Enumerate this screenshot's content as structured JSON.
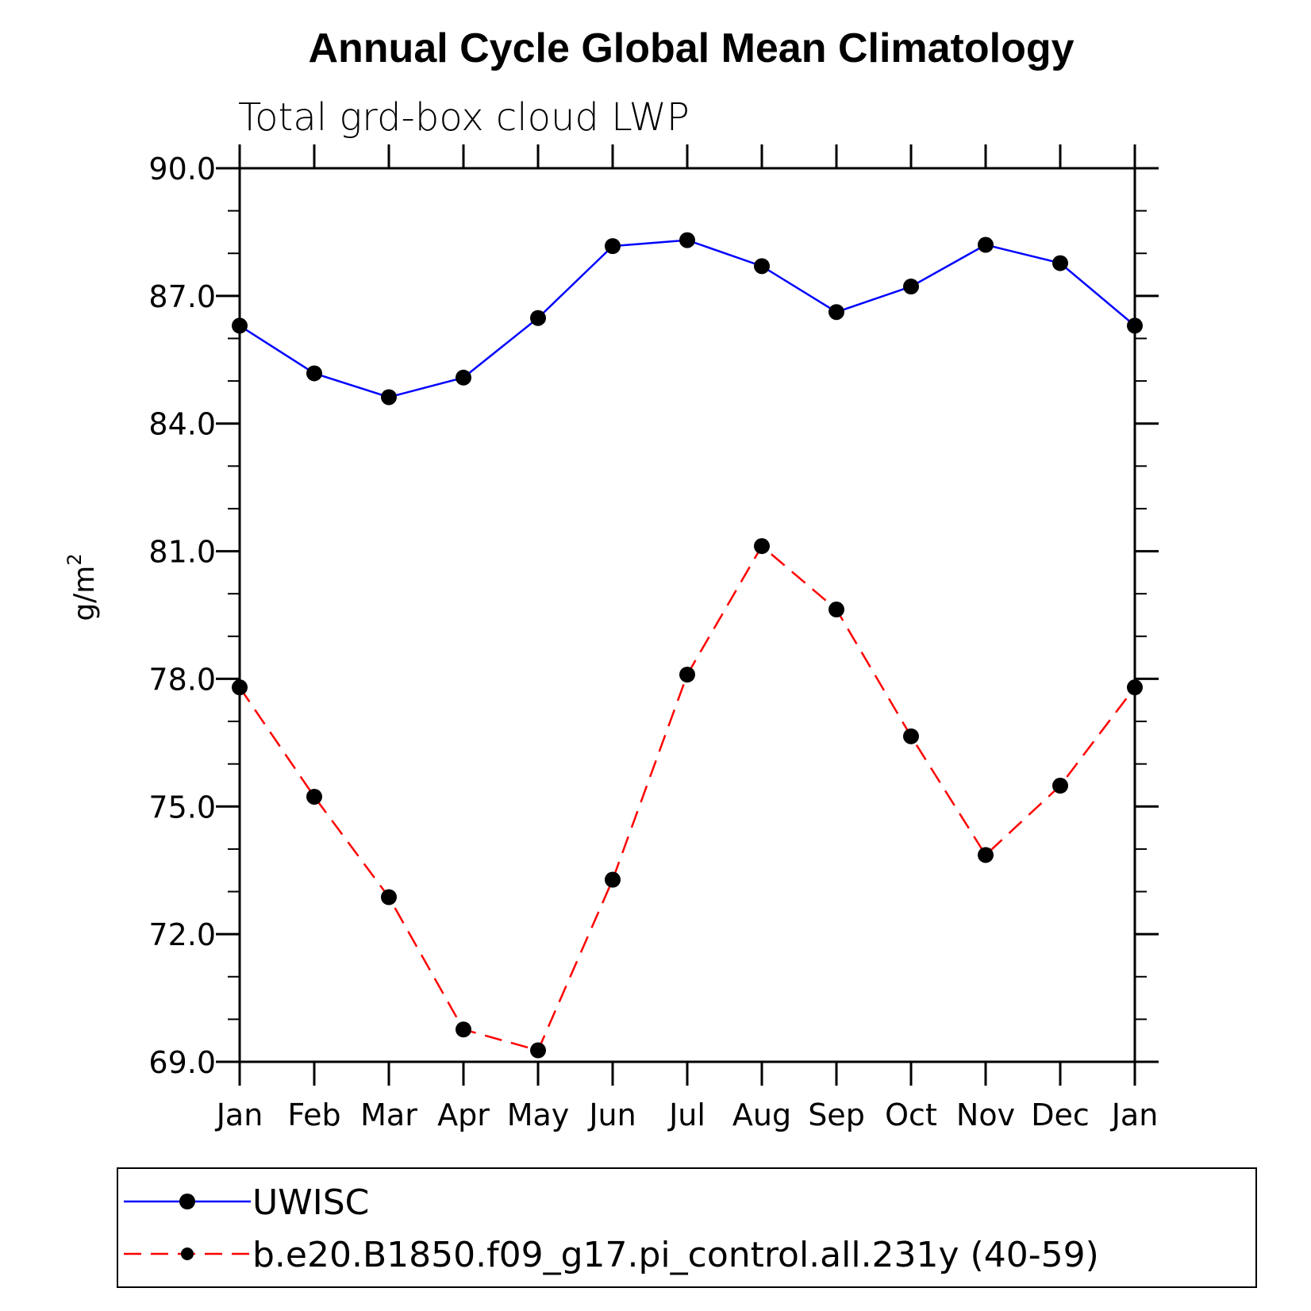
{
  "chart_data": {
    "type": "line",
    "title": "Annual Cycle Global Mean Climatology",
    "subtitle": "Total grd-box cloud LWP",
    "ylabel": "g/m",
    "ylabel_superscript": "2",
    "xlabel": "",
    "categories": [
      "Jan",
      "Feb",
      "Mar",
      "Apr",
      "May",
      "Jun",
      "Jul",
      "Aug",
      "Sep",
      "Oct",
      "Nov",
      "Dec",
      "Jan"
    ],
    "ylim": [
      69.0,
      90.0
    ],
    "yticks": [
      "69.0",
      "72.0",
      "75.0",
      "78.0",
      "81.0",
      "84.0",
      "87.0",
      "90.0"
    ],
    "grid": false,
    "legend_position": "bottom",
    "series": [
      {
        "name": "UWISC",
        "color": "#0000ff",
        "dash": "solid",
        "marker": "filled-circle",
        "values": [
          86.3,
          85.18,
          84.62,
          85.08,
          86.48,
          88.17,
          88.31,
          87.7,
          86.62,
          87.22,
          88.2,
          87.77,
          86.3
        ]
      },
      {
        "name": "b.e20.B1850.f09_g17.pi_control.all.231y (40-59)",
        "color": "#ff0000",
        "dash": "dashed",
        "marker": "filled-circle",
        "values": [
          77.8,
          75.23,
          72.87,
          69.76,
          69.27,
          73.28,
          78.1,
          81.12,
          79.63,
          76.65,
          73.86,
          75.49,
          77.8
        ]
      }
    ]
  }
}
